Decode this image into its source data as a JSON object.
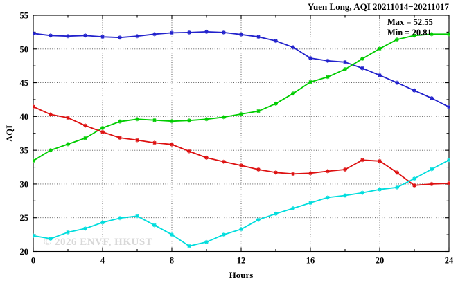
{
  "figure": {
    "title": "Yuen Long, AQI 20211014−20211017",
    "annotation_max": "Max = 52.55",
    "annotation_min": "Min = 20.81",
    "watermark": "© 2026 ENVF, HKUST",
    "xlabel": "Hours",
    "ylabel": "AQI"
  },
  "colors": {
    "blue": "#2222cc",
    "green": "#00cc00",
    "red": "#dd1111",
    "cyan": "#00dddd",
    "grid": "#4a4a4a",
    "watermark": "#cbcbcb",
    "background": "#ffffff",
    "text": "#000000"
  },
  "chart_data": {
    "type": "line",
    "title": "Yuen Long, AQI 20211014−20211017",
    "xlabel": "Hours",
    "ylabel": "AQI",
    "xlim": [
      0,
      24
    ],
    "ylim": [
      20,
      55
    ],
    "x_major_ticks": [
      0,
      4,
      8,
      12,
      16,
      20,
      24
    ],
    "x_minor_ticks": [
      2,
      6,
      10,
      14,
      18,
      22
    ],
    "y_major_ticks": [
      20,
      25,
      30,
      35,
      40,
      45,
      50,
      55
    ],
    "y_minor_ticks": [
      22.5,
      27.5,
      32.5,
      37.5,
      42.5,
      47.5,
      52.5
    ],
    "grid": {
      "style": "dotted",
      "vertical_at": [
        4,
        8,
        12,
        16,
        20
      ],
      "horizontal_at": [
        25,
        30,
        35,
        40,
        45,
        50
      ]
    },
    "legend": "none",
    "marker": "asterisk",
    "annotations": [
      "Max = 52.55",
      "Min = 20.81"
    ],
    "stats": {
      "max": 52.55,
      "min": 20.81
    },
    "x": [
      0,
      1,
      2,
      3,
      4,
      5,
      6,
      7,
      8,
      9,
      10,
      11,
      12,
      13,
      14,
      15,
      16,
      17,
      18,
      19,
      20,
      21,
      22,
      23,
      24
    ],
    "series": [
      {
        "name": "series-blue",
        "color": "#2222cc",
        "values": [
          52.3,
          52.0,
          51.9,
          52.0,
          51.8,
          51.7,
          51.9,
          52.2,
          52.4,
          52.45,
          52.55,
          52.45,
          52.15,
          51.8,
          51.2,
          50.25,
          48.65,
          48.25,
          48.05,
          47.15,
          46.1,
          45.0,
          43.85,
          42.7,
          41.4
        ]
      },
      {
        "name": "series-green",
        "color": "#00cc00",
        "values": [
          33.45,
          35.0,
          35.9,
          36.8,
          38.3,
          39.25,
          39.6,
          39.45,
          39.3,
          39.4,
          39.6,
          39.9,
          40.35,
          40.8,
          41.9,
          43.4,
          45.1,
          45.85,
          47.0,
          48.55,
          50.05,
          51.4,
          52.0,
          52.2,
          52.2
        ]
      },
      {
        "name": "series-red",
        "color": "#dd1111",
        "values": [
          41.45,
          40.3,
          39.8,
          38.65,
          37.7,
          36.85,
          36.5,
          36.1,
          35.85,
          34.85,
          33.9,
          33.3,
          32.75,
          32.15,
          31.7,
          31.5,
          31.6,
          31.9,
          32.15,
          33.55,
          33.4,
          31.7,
          29.8,
          30.0,
          30.1
        ]
      },
      {
        "name": "series-cyan",
        "color": "#00dddd",
        "values": [
          22.35,
          21.9,
          22.85,
          23.4,
          24.3,
          24.95,
          25.25,
          23.9,
          22.5,
          20.81,
          21.4,
          22.5,
          23.3,
          24.7,
          25.6,
          26.4,
          27.2,
          28.0,
          28.3,
          28.7,
          29.2,
          29.5,
          30.8,
          32.2,
          33.55
        ]
      }
    ]
  }
}
